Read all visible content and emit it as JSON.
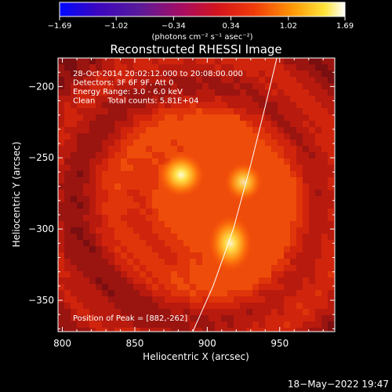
{
  "chart_data": {
    "type": "heatmap",
    "title": "Reconstructed RHESSI Image",
    "xlabel": "Heliocentric X (arcsec)",
    "ylabel": "Heliocentric Y (arcsec)",
    "xlim": [
      797,
      988
    ],
    "ylim": [
      -372,
      -180
    ],
    "x_ticks": [
      800,
      850,
      900,
      950
    ],
    "x_tick_labels": [
      "800",
      "850",
      "900",
      "950"
    ],
    "y_ticks": [
      -200,
      -250,
      -300,
      -350
    ],
    "y_tick_labels": [
      "−200",
      "−250",
      "−300",
      "−350"
    ],
    "colorbar": {
      "range": [
        -1.69,
        1.69
      ],
      "ticks": [
        -1.69,
        -1.02,
        -0.34,
        0.34,
        1.02,
        1.69
      ],
      "tick_labels": [
        "−1.69",
        "−1.02",
        "−0.34",
        "0.34",
        "1.02",
        "1.69"
      ],
      "unit_label": "(photons cm⁻² s⁻¹ asec⁻²)",
      "colormap": "blue-purple-red-orange-yellow-white"
    },
    "info_lines": [
      "28-Oct-2014 20:02:12.000 to 20:08:00.000",
      "Detectors: 3F 6F 9F, Att 0",
      "Energy Range: 3.0 - 6.0 keV",
      "Clean     Total counts: 5.81E+04"
    ],
    "peak_label": "Position of Peak = [882,-262]",
    "sources": [
      {
        "x": 882,
        "y": -262,
        "intensity": 1.69
      },
      {
        "x": 916,
        "y": -310,
        "intensity": 1.5
      },
      {
        "x": 925,
        "y": -267,
        "intensity": 1.1
      }
    ],
    "limb_line": [
      [
        890,
        -372
      ],
      [
        904,
        -340
      ],
      [
        918,
        -300
      ],
      [
        930,
        -255
      ],
      [
        941,
        -210
      ],
      [
        948,
        -180
      ]
    ],
    "timestamp": "18−May−2022 19:47"
  }
}
